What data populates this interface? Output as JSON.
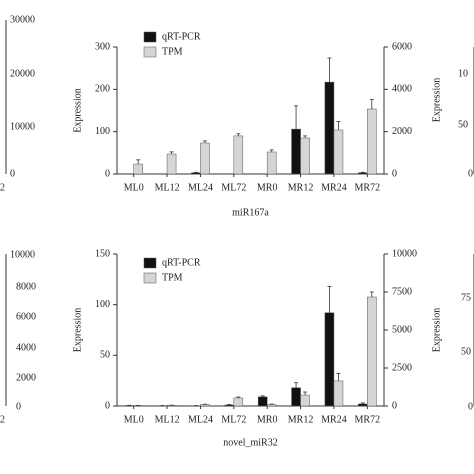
{
  "chart_data": [
    {
      "type": "bar",
      "title": "miR167a",
      "ylabel": "Expression",
      "categories": [
        "ML0",
        "ML12",
        "ML24",
        "ML72",
        "MR0",
        "MR12",
        "MR24",
        "MR72"
      ],
      "ylim": [
        0,
        300
      ],
      "yticks": [
        0,
        100,
        200,
        300
      ],
      "y2lim": [
        0,
        6000
      ],
      "y2ticks": [
        0,
        2000,
        4000,
        6000
      ],
      "legend": "upper-left",
      "series": [
        {
          "name": "qRT-PCR",
          "color": "#111111",
          "values": [
            0,
            0,
            3,
            0,
            0,
            106,
            217,
            3
          ],
          "errors": [
            0,
            0,
            1,
            0,
            0,
            55,
            57,
            1
          ]
        },
        {
          "name": "TPM",
          "color": "#d4d6d2",
          "axis": "y2",
          "values": [
            470,
            945,
            1465,
            1800,
            1040,
            1700,
            2080,
            3070
          ],
          "errors": [
            200,
            100,
            100,
            100,
            100,
            100,
            400,
            450
          ]
        }
      ]
    },
    {
      "type": "bar",
      "title": "novel_miR32",
      "ylabel": "Expression",
      "categories": [
        "ML0",
        "ML12",
        "ML24",
        "ML72",
        "MR0",
        "MR12",
        "MR24",
        "MR72"
      ],
      "ylim": [
        0,
        150
      ],
      "yticks": [
        0,
        50,
        100,
        150
      ],
      "y2lim": [
        0,
        10000
      ],
      "y2ticks": [
        0,
        2500,
        5000,
        7500,
        10000
      ],
      "legend": "upper-left",
      "series": [
        {
          "name": "qRT-PCR",
          "color": "#111111",
          "values": [
            0.5,
            0.3,
            0.3,
            1,
            9,
            18,
            92,
            2
          ],
          "errors": [
            0.2,
            0.2,
            0.2,
            0.5,
            1,
            5,
            26,
            1
          ]
        },
        {
          "name": "TPM",
          "color": "#d4d6d2",
          "axis": "y2",
          "values": [
            30,
            50,
            100,
            530,
            100,
            720,
            1650,
            7170
          ],
          "errors": [
            10,
            10,
            20,
            60,
            30,
            200,
            500,
            330
          ]
        }
      ]
    }
  ],
  "fragments": [
    "30000",
    "20000",
    "10000",
    "0",
    "2",
    "Expression",
    "10",
    "50",
    "0",
    "10000",
    "8000",
    "6000",
    "4000",
    "2000",
    "0",
    "2",
    "Expression",
    "75",
    "50",
    "0"
  ]
}
